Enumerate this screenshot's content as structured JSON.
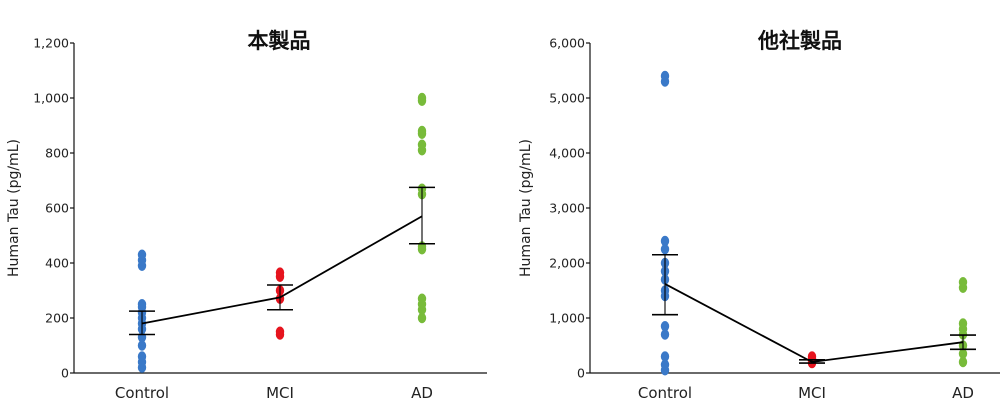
{
  "chart_data": [
    {
      "type": "scatter",
      "title": "本製品",
      "ylabel": "Human Tau (pg/mL)",
      "xlabel": "",
      "ylim": [
        0,
        1200
      ],
      "yticks": [
        0,
        200,
        400,
        600,
        800,
        1000,
        1200
      ],
      "ytick_labels": [
        "0",
        "200",
        "400",
        "600",
        "800",
        "1,000",
        "1,200"
      ],
      "categories": [
        "Control",
        "MCI",
        "AD"
      ],
      "colors": [
        "#3a79c8",
        "#e6141e",
        "#78bb3a"
      ],
      "points": [
        [
          20,
          40,
          60,
          100,
          130,
          160,
          180,
          200,
          220,
          240,
          250,
          390,
          410,
          430
        ],
        [
          140,
          150,
          270,
          300,
          350,
          365
        ],
        [
          200,
          230,
          250,
          270,
          450,
          460,
          650,
          670,
          810,
          830,
          870,
          880,
          990,
          1000
        ]
      ],
      "mean_line": [
        180,
        275,
        570
      ],
      "error_bars": [
        {
          "low": 140,
          "high": 225
        },
        {
          "low": 230,
          "high": 320
        },
        {
          "low": 470,
          "high": 675
        }
      ]
    },
    {
      "type": "scatter",
      "title": "他社製品",
      "ylabel": "Human Tau (pg/mL)",
      "xlabel": "",
      "ylim": [
        0,
        6000
      ],
      "yticks": [
        0,
        1000,
        2000,
        3000,
        4000,
        5000,
        6000
      ],
      "ytick_labels": [
        "0",
        "1,000",
        "2,000",
        "3,000",
        "4,000",
        "5,000",
        "6,000"
      ],
      "categories": [
        "Control",
        "MCI",
        "AD"
      ],
      "colors": [
        "#3a79c8",
        "#e6141e",
        "#78bb3a"
      ],
      "points": [
        [
          50,
          150,
          300,
          700,
          850,
          1400,
          1500,
          1700,
          1850,
          2000,
          2250,
          2400,
          5300,
          5400
        ],
        [
          180,
          220,
          260,
          300
        ],
        [
          200,
          350,
          500,
          700,
          800,
          900,
          1550,
          1650
        ]
      ],
      "mean_line": [
        1620,
        200,
        560
      ],
      "error_bars": [
        {
          "low": 1060,
          "high": 2150
        },
        {
          "low": 180,
          "high": 240
        },
        {
          "low": 430,
          "high": 690
        }
      ]
    }
  ]
}
